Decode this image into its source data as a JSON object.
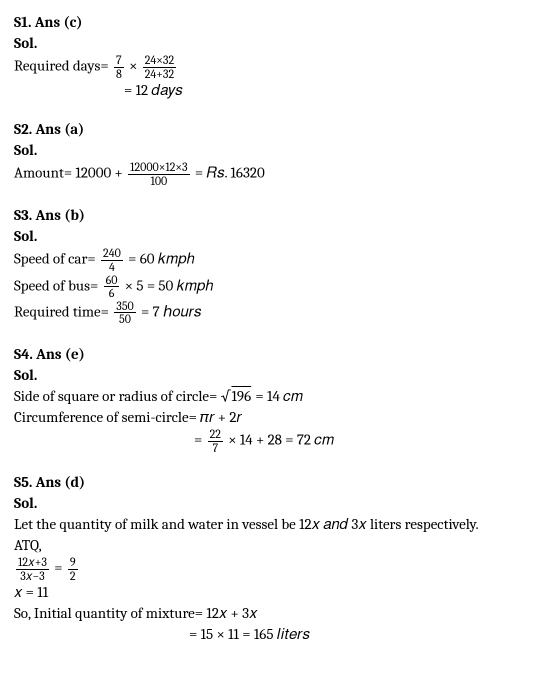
{
  "s1": {
    "title": "S1. Ans (c)",
    "sol": "Sol.",
    "line1_a": "Required days= ",
    "frac1_num": "7",
    "frac1_den": "8",
    "mid1": " × ",
    "frac2_num": "24×32",
    "frac2_den": "24+32",
    "line2": "= 12 𝑑𝑎𝑦𝑠"
  },
  "s2": {
    "title": "S2. Ans (a)",
    "sol": "Sol.",
    "line1_a": "Amount= 12000 + ",
    "frac_num": "12000×12×3",
    "frac_den": "100",
    "line1_b": " = 𝑅𝑠. 16320"
  },
  "s3": {
    "title": "S3. Ans (b)",
    "sol": "Sol.",
    "l1a": "Speed of car= ",
    "f1n": "240",
    "f1d": "4",
    "l1b": " = 60 𝑘𝑚𝑝ℎ",
    "l2a": "Speed of bus= ",
    "f2n": "60",
    "f2d": "6",
    "l2b": " × 5 = 50 𝑘𝑚𝑝ℎ",
    "l3a": "Required time= ",
    "f3n": "350",
    "f3d": "50",
    "l3b": " = 7 ℎ𝑜𝑢𝑟𝑠"
  },
  "s4": {
    "title": "S4. Ans (e)",
    "sol": "Sol.",
    "l1a": "Side of square or radius of circle= √",
    "l1b": "196",
    "l1c": " = 14 𝑐𝑚",
    "l2": "Circumference of semi-circle= 𝜋𝑟 + 2𝑟",
    "l3a": "= ",
    "f_num": "22",
    "f_den": "7",
    "l3b": " × 14 + 28 = 72 𝑐𝑚"
  },
  "s5": {
    "title": "S5. Ans (d)",
    "sol": "Sol.",
    "l1": "Let the quantity of milk and water in vessel be 12𝑥 𝑎𝑛𝑑 3𝑥 liters respectively.",
    "l2": "ATQ,",
    "f1n": "12𝑥+3",
    "f1d": "3𝑥−3",
    "mid": " = ",
    "f2n": "9",
    "f2d": "2",
    "l4": "𝑥 = 11",
    "l5": "So, Initial quantity of mixture= 12𝑥 + 3𝑥",
    "l6": "= 15 × 11 = 165 𝑙𝑖𝑡𝑒𝑟𝑠"
  }
}
